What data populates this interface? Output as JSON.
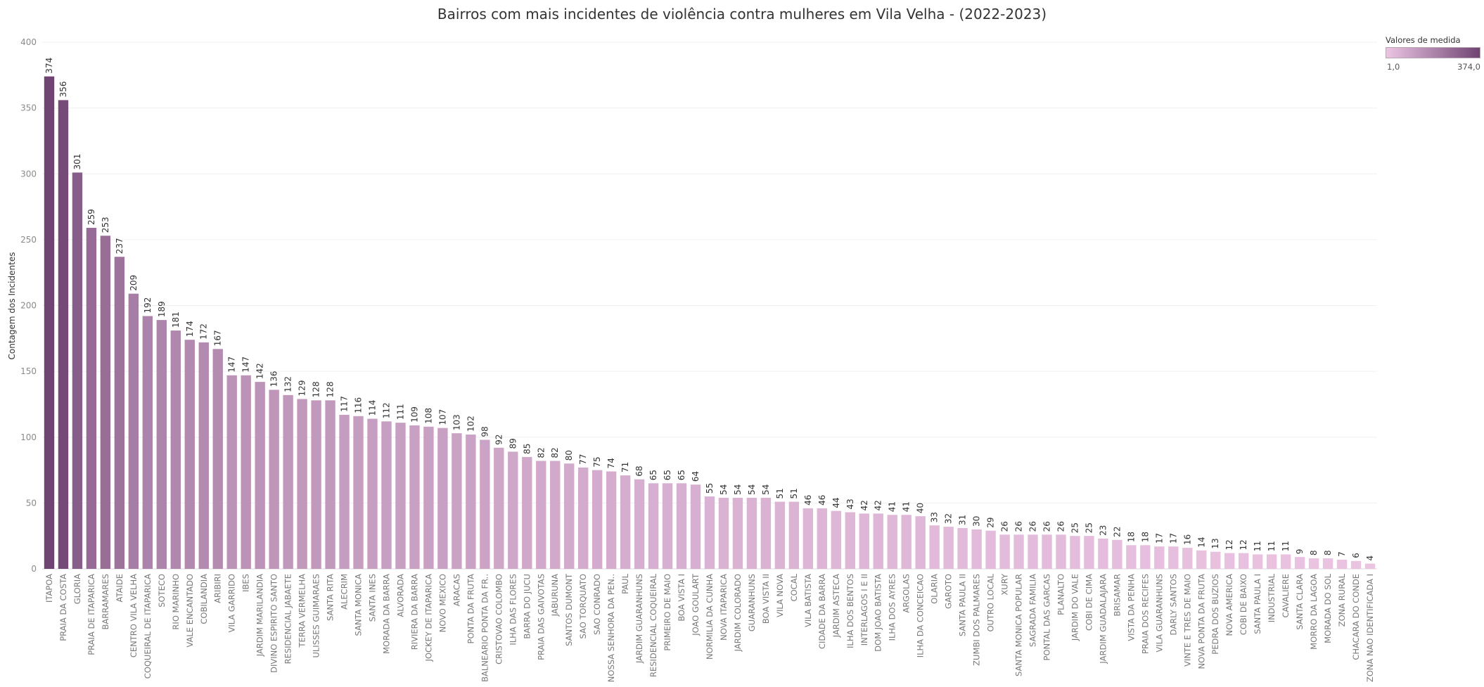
{
  "chart_data": {
    "type": "bar",
    "title": "Bairros com mais incidentes de violência contra mulheres em Vila Velha - (2022-2023)",
    "xlabel": "",
    "ylabel": "Contagem dos Incidentes",
    "ylim": [
      0,
      400
    ],
    "yticks": [
      0,
      50,
      100,
      150,
      200,
      250,
      300,
      350,
      400
    ],
    "grid": true,
    "legend": {
      "title": "Valores de medida",
      "min_label": "1,0",
      "max_label": "374,0",
      "placement": "top-right",
      "color_low": "#ecc5e3",
      "color_high": "#6f4473"
    },
    "categories": [
      "ITAPOA",
      "PRAIA DA COSTA",
      "GLORIA",
      "PRAIA DE ITAPARICA",
      "BARRAMARES",
      "ATAIDE",
      "CENTRO VILA VELHA",
      "COQUEIRAL DE ITAPARICA",
      "SOTECO",
      "RIO MARINHO",
      "VALE ENCANTADO",
      "COBILANDIA",
      "ARIBIRI",
      "VILA GARRIDO",
      "IBES",
      "JARDIM MARILANDIA",
      "DIVINO ESPIRITO SANTO",
      "RESIDENCIAL JABAETE",
      "TERRA VERMELHA",
      "ULISSES GUIMARAES",
      "SANTA RITA",
      "ALECRIM",
      "SANTA MONICA",
      "SANTA INES",
      "MORADA DA BARRA",
      "ALVORADA",
      "RIVIERA DA BARRA",
      "JOCKEY DE ITAPARICA",
      "NOVO MEXICO",
      "ARACAS",
      "PONTA DA FRUTA",
      "BALNEARIO PONTA DA FR..",
      "CRISTOVAO COLOMBO",
      "ILHA DAS FLORES",
      "BARRA DO JUCU",
      "PRAIA DAS GAIVOTAS",
      "JABURUNA",
      "SANTOS DUMONT",
      "SAO TORQUATO",
      "SAO CONRADO",
      "NOSSA SENHORA DA PEN..",
      "PAUL",
      "JARDIM GUARANHUNS",
      "RESIDENCIAL COQUEIRAL",
      "PRIMEIRO DE MAIO",
      "BOA VISTA I",
      "JOAO GOULART",
      "NORMILIA DA CUNHA",
      "NOVA ITAPARICA",
      "JARDIM COLORADO",
      "GUARANHUNS",
      "BOA VISTA II",
      "VILA NOVA",
      "COCAL",
      "VILA BATISTA",
      "CIDADE DA BARRA",
      "JARDIM ASTECA",
      "ILHA DOS BENTOS",
      "INTERLAGOS I E II",
      "DOM JOAO BATISTA",
      "ILHA DOS AYRES",
      "ARGOLAS",
      "ILHA DA CONCEICAO",
      "OLARIA",
      "GAROTO",
      "SANTA PAULA II",
      "ZUMBI DOS PALMARES",
      "OUTRO LOCAL",
      "XURY",
      "SANTA MONICA POPULAR",
      "SAGRADA FAMILIA",
      "PONTAL DAS GARCAS",
      "PLANALTO",
      "JARDIM DO VALE",
      "COBI DE CIMA",
      "JARDIM GUADALAJARA",
      "BRISAMAR",
      "VISTA DA PENHA",
      "PRAIA DOS RECIFES",
      "VILA GUARANHUNS",
      "DARLY SANTOS",
      "VINTE E TRES DE MAIO",
      "NOVA PONTA DA FRUTA",
      "PEDRA DOS BUZIOS",
      "NOVA AMERICA",
      "COBI DE BAIXO",
      "SANTA PAULA I",
      "INDUSTRIAL",
      "CAVALIERE",
      "SANTA CLARA",
      "MORRO DA LAGOA",
      "MORADA DO SOL",
      "ZONA RURAL",
      "CHACARA DO CONDE",
      "ZONA NAO IDENTIFICADA I"
    ],
    "values": [
      374,
      356,
      301,
      259,
      253,
      237,
      209,
      192,
      189,
      181,
      174,
      172,
      167,
      147,
      147,
      142,
      136,
      132,
      129,
      128,
      128,
      117,
      116,
      114,
      112,
      111,
      109,
      108,
      107,
      103,
      102,
      98,
      92,
      89,
      85,
      82,
      82,
      80,
      77,
      75,
      74,
      71,
      68,
      65,
      65,
      65,
      64,
      55,
      54,
      54,
      54,
      54,
      51,
      51,
      46,
      46,
      44,
      43,
      42,
      42,
      41,
      41,
      40,
      33,
      32,
      31,
      30,
      29,
      26,
      26,
      26,
      26,
      26,
      25,
      25,
      23,
      22,
      18,
      18,
      17,
      17,
      16,
      14,
      13,
      12,
      12,
      11,
      11,
      11,
      9,
      8,
      8,
      7,
      6,
      4
    ]
  }
}
